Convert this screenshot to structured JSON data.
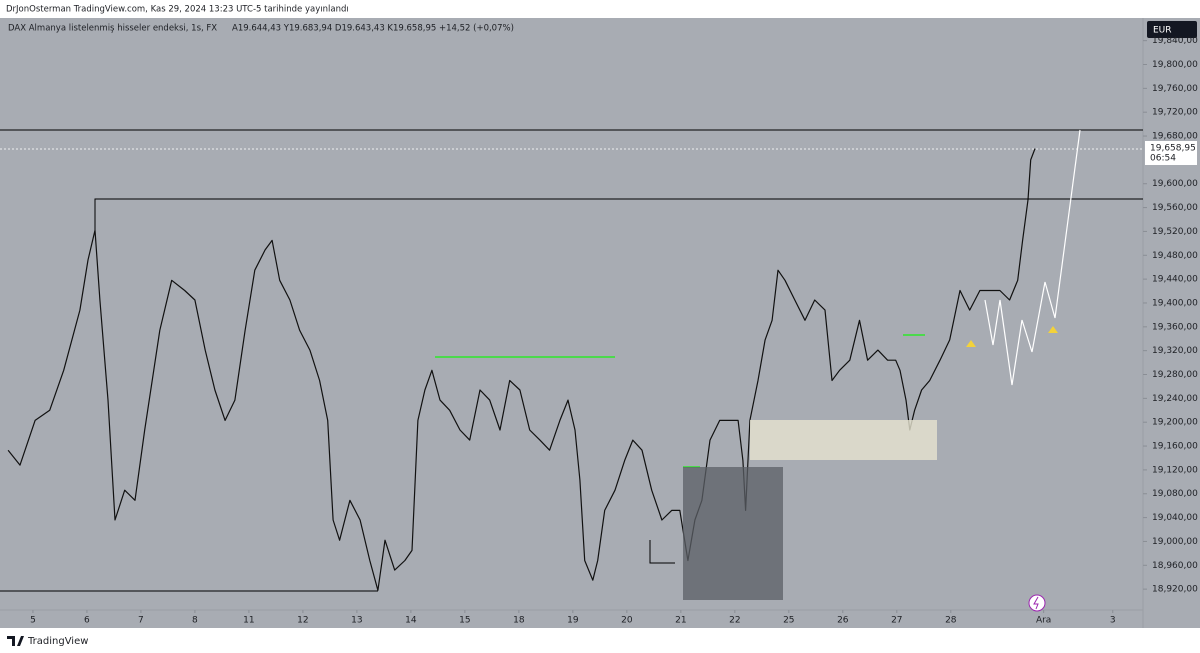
{
  "header": {
    "publisher": "DrJonOsterman TradingView.com, Kas 29, 2024 13:23 UTC-5 tarihinde yayınlandı",
    "symbol": "DAX Almanya listelenmiş hisseler endeksi, 1s, FX",
    "ohlc": "A19.644,43  Y19.683,94  D19.643,43  K19.658,95  +14,52 (+0,07%)",
    "currency": "EUR"
  },
  "price_label": "19,658,95",
  "countdown": "06:54",
  "footer": {
    "brand": "TradingView"
  },
  "chart_data": {
    "type": "line",
    "color": "#111111",
    "x": [
      -0.46,
      -0.24,
      0.04,
      0.31,
      0.57,
      0.87,
      1.02,
      1.15,
      1.24,
      1.39,
      1.52,
      1.7,
      1.89,
      2.07,
      2.35,
      2.57,
      2.81,
      3.0,
      3.19,
      3.37,
      3.56,
      3.74,
      3.93,
      4.11,
      4.3,
      4.43,
      4.57,
      4.76,
      4.94,
      5.13,
      5.31,
      5.46,
      5.56,
      5.68,
      5.87,
      6.06,
      6.24,
      6.39,
      6.52,
      6.7,
      6.89,
      7.02,
      7.13,
      7.26,
      7.39,
      7.54,
      7.72,
      7.91,
      8.09,
      8.28,
      8.46,
      8.65,
      8.83,
      9.02,
      9.2,
      9.39,
      9.57,
      9.76,
      9.91,
      10.04,
      10.13,
      10.22,
      10.37,
      10.46,
      10.59,
      10.78,
      10.96,
      11.11,
      11.28,
      11.46,
      11.65,
      11.83,
      11.98,
      12.13,
      12.26,
      12.39,
      12.54,
      12.72,
      12.91,
      13.06,
      13.15,
      13.2,
      13.28,
      13.43,
      13.56,
      13.69,
      13.8,
      13.93,
      14.11,
      14.3,
      14.48,
      14.67,
      14.8,
      14.94,
      15.13,
      15.31,
      15.46,
      15.65,
      15.83,
      15.98,
      16.06,
      16.17,
      16.24,
      16.33,
      16.46,
      16.61,
      16.8,
      16.98,
      17.17,
      17.35,
      17.54,
      17.72,
      17.91,
      18.09,
      18.24,
      18.33,
      18.43,
      18.48,
      18.56
    ],
    "values": [
      19153,
      19128,
      19203,
      19220,
      19287,
      19388,
      19472,
      19522,
      19405,
      19237,
      19036,
      19086,
      19069,
      19187,
      19354,
      19438,
      19421,
      19405,
      19321,
      19254,
      19203,
      19237,
      19354,
      19455,
      19489,
      19505,
      19438,
      19405,
      19354,
      19321,
      19270,
      19203,
      19036,
      19002,
      19069,
      19036,
      18968,
      18918,
      19002,
      18952,
      18968,
      18985,
      19203,
      19254,
      19287,
      19237,
      19220,
      19187,
      19170,
      19254,
      19237,
      19187,
      19270,
      19254,
      19187,
      19170,
      19153,
      19203,
      19237,
      19187,
      19103,
      18968,
      18935,
      18968,
      19052,
      19086,
      19136,
      19170,
      19153,
      19086,
      19036,
      19052,
      19052,
      18968,
      19036,
      19069,
      19170,
      19203,
      19203,
      19203,
      19136,
      19052,
      19203,
      19270,
      19338,
      19371,
      19455,
      19438,
      19405,
      19371,
      19405,
      19388,
      19270,
      19287,
      19304,
      19371,
      19304,
      19321,
      19304,
      19304,
      19287,
      19237,
      19187,
      19220,
      19254,
      19270,
      19304,
      19338,
      19421,
      19388,
      19421,
      19421,
      19421,
      19405,
      19438,
      19505,
      19573,
      19640,
      19659
    ],
    "xlim": [
      -0.61,
      20.56
    ],
    "ylim": [
      18885,
      19878
    ],
    "xticks": [
      {
        "value": 0,
        "label": "5"
      },
      {
        "value": 1,
        "label": "6"
      },
      {
        "value": 2,
        "label": "7"
      },
      {
        "value": 3,
        "label": "8"
      },
      {
        "value": 4,
        "label": "11"
      },
      {
        "value": 5,
        "label": "12"
      },
      {
        "value": 6,
        "label": "13"
      },
      {
        "value": 7,
        "label": "14"
      },
      {
        "value": 8,
        "label": "15"
      },
      {
        "value": 9,
        "label": "18"
      },
      {
        "value": 10,
        "label": "19"
      },
      {
        "value": 11,
        "label": "20"
      },
      {
        "value": 12,
        "label": "21"
      },
      {
        "value": 13,
        "label": "22"
      },
      {
        "value": 14,
        "label": "25"
      },
      {
        "value": 15,
        "label": "26"
      },
      {
        "value": 16,
        "label": "27"
      },
      {
        "value": 17,
        "label": "28"
      },
      {
        "value": 18.72,
        "label": "Ara"
      },
      {
        "value": 20,
        "label": "3"
      }
    ],
    "yticks": [
      {
        "value": 18920,
        "label": "18,920,00"
      },
      {
        "value": 18960,
        "label": "18,960,00"
      },
      {
        "value": 19000,
        "label": "19,000,00"
      },
      {
        "value": 19040,
        "label": "19,040,00"
      },
      {
        "value": 19080,
        "label": "19,080,00"
      },
      {
        "value": 19120,
        "label": "19,120,00"
      },
      {
        "value": 19160,
        "label": "19,160,00"
      },
      {
        "value": 19200,
        "label": "19,200,00"
      },
      {
        "value": 19240,
        "label": "19,240,00"
      },
      {
        "value": 19280,
        "label": "19,280,00"
      },
      {
        "value": 19320,
        "label": "19,320,00"
      },
      {
        "value": 19360,
        "label": "19,360,00"
      },
      {
        "value": 19400,
        "label": "19,400,00"
      },
      {
        "value": 19440,
        "label": "19,440,00"
      },
      {
        "value": 19480,
        "label": "19,480,00"
      },
      {
        "value": 19520,
        "label": "19,520,00"
      },
      {
        "value": 19560,
        "label": "19,560,00"
      },
      {
        "value": 19600,
        "label": "19,600,00"
      },
      {
        "value": 19680,
        "label": "19,680,00"
      },
      {
        "value": 19720,
        "label": "19,720,00"
      },
      {
        "value": 19760,
        "label": "19,760,00"
      },
      {
        "value": 19800,
        "label": "19,800,00"
      },
      {
        "value": 19840,
        "label": "19,840,00"
      }
    ]
  }
}
